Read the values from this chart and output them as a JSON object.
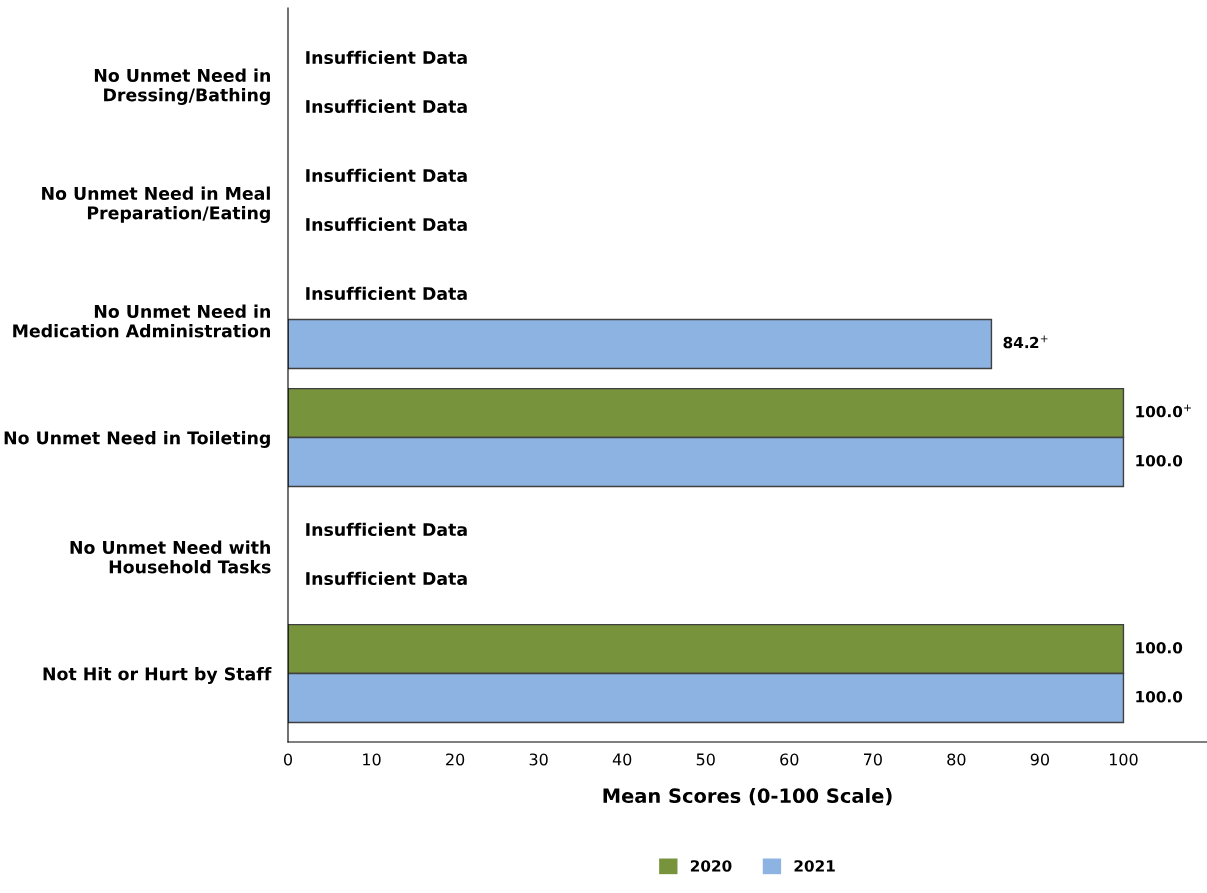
{
  "chart_data": {
    "type": "bar",
    "orientation": "horizontal",
    "xlabel": "Mean Scores (0-100 Scale)",
    "categories": [
      "No Unmet Need in\nDressing/Bathing",
      "No Unmet Need in Meal\nPreparation/Eating",
      "No Unmet Need in\nMedication Administration",
      "No Unmet Need in Toileting",
      "No Unmet Need with\nHousehold Tasks",
      "Not Hit or Hurt by Staff"
    ],
    "series": [
      {
        "name": "2020",
        "color": "#77933c",
        "values": [
          null,
          null,
          null,
          100,
          null,
          100
        ],
        "value_labels": [
          "Insufficient Data",
          "Insufficient Data",
          "Insufficient Data",
          "100.0$^{+}$",
          "Insufficient Data",
          "100.0"
        ]
      },
      {
        "name": "2021",
        "color": "#8db3e2",
        "values": [
          null,
          null,
          84.2,
          100,
          null,
          100
        ],
        "value_labels": [
          "Insufficient Data",
          "Insufficient Data",
          "84.2$^{+}$",
          "100.0",
          "Insufficient Data",
          "100.0"
        ]
      }
    ],
    "xlim": [
      0,
      110
    ],
    "xticks": [
      0,
      10,
      20,
      30,
      40,
      50,
      60,
      70,
      80,
      90,
      100
    ],
    "grid": false,
    "legend": "bottom"
  }
}
